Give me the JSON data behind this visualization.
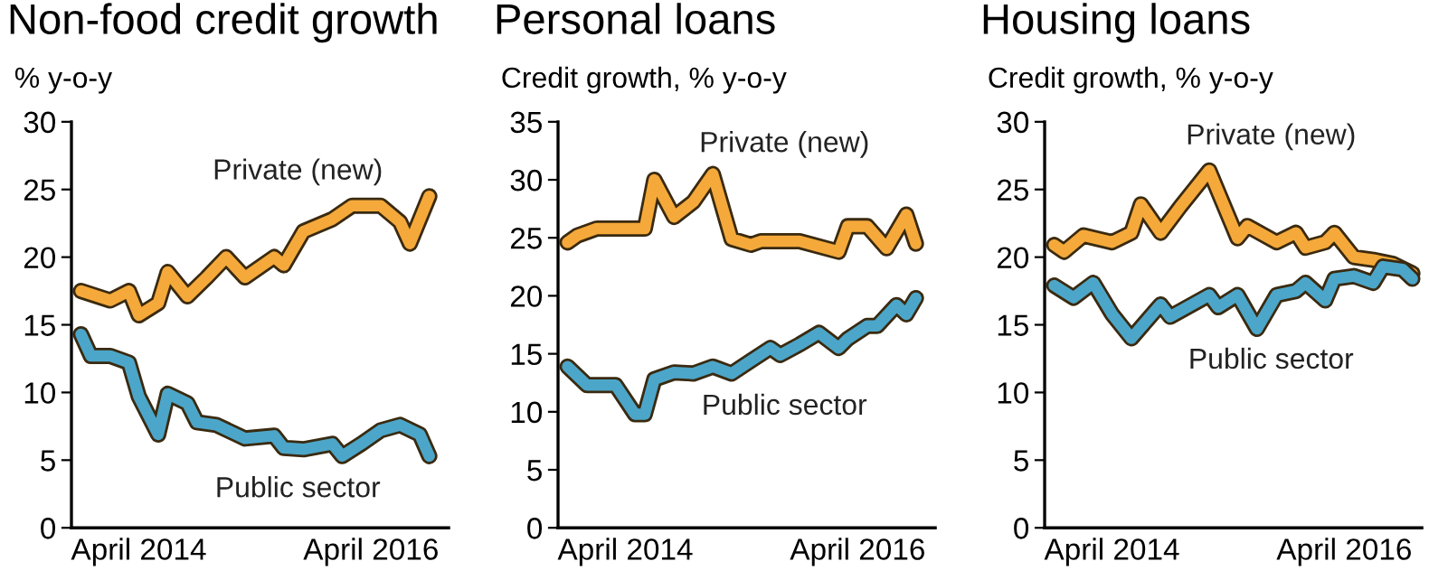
{
  "chart_data": [
    {
      "type": "line",
      "title": "Non-food credit growth",
      "subtitle": "% y-o-y",
      "xlim": [
        "2013-09",
        "2016-12"
      ],
      "ylim": [
        0,
        30
      ],
      "yticks": [
        0,
        5,
        10,
        15,
        20,
        25,
        30
      ],
      "xticks": [
        {
          "value": "2014-04",
          "label": "April 2014"
        },
        {
          "value": "2016-04",
          "label": "April 2016"
        }
      ],
      "grid": false,
      "legend": false,
      "marker": "none",
      "line_style": "solid",
      "series": [
        {
          "name": "Private (new)",
          "color": "#f5a93a",
          "x": [
            "2013-10",
            "2014-01",
            "2014-03",
            "2014-04",
            "2014-06",
            "2014-07",
            "2014-09",
            "2014-11",
            "2015-01",
            "2015-03",
            "2015-06",
            "2015-07",
            "2015-09",
            "2015-12",
            "2016-02",
            "2016-05",
            "2016-07",
            "2016-08",
            "2016-10"
          ],
          "values": [
            17.5,
            16.8,
            17.5,
            15.7,
            16.6,
            18.9,
            17.1,
            18.5,
            20.0,
            18.5,
            20.0,
            19.4,
            21.9,
            22.8,
            23.8,
            23.8,
            22.6,
            21.0,
            24.5
          ]
        },
        {
          "name": "Public sector",
          "color": "#4ca6c9",
          "x": [
            "2013-10",
            "2013-11",
            "2014-01",
            "2014-03",
            "2014-04",
            "2014-06",
            "2014-07",
            "2014-09",
            "2014-10",
            "2014-12",
            "2015-03",
            "2015-06",
            "2015-07",
            "2015-09",
            "2015-12",
            "2016-01",
            "2016-03",
            "2016-05",
            "2016-07",
            "2016-09",
            "2016-10"
          ],
          "values": [
            14.3,
            12.7,
            12.7,
            12.2,
            9.7,
            6.9,
            9.9,
            9.2,
            7.8,
            7.6,
            6.6,
            6.8,
            5.9,
            5.8,
            6.2,
            5.3,
            6.2,
            7.2,
            7.6,
            6.9,
            5.3
          ]
        }
      ]
    },
    {
      "type": "line",
      "title": "Personal loans",
      "subtitle": "Credit growth, % y-o-y",
      "xlim": [
        "2013-09",
        "2016-12"
      ],
      "ylim": [
        0,
        35
      ],
      "yticks": [
        0,
        5,
        10,
        15,
        20,
        25,
        30,
        35
      ],
      "xticks": [
        {
          "value": "2014-04",
          "label": "April 2014"
        },
        {
          "value": "2016-04",
          "label": "April 2016"
        }
      ],
      "grid": false,
      "legend": false,
      "marker": "none",
      "line_style": "solid",
      "series": [
        {
          "name": "Private (new)",
          "color": "#f5a93a",
          "x": [
            "2013-10",
            "2013-11",
            "2014-01",
            "2014-06",
            "2014-07",
            "2014-09",
            "2014-11",
            "2015-01",
            "2015-03",
            "2015-05",
            "2015-06",
            "2015-10",
            "2016-02",
            "2016-03",
            "2016-05",
            "2016-07",
            "2016-09",
            "2016-10"
          ],
          "values": [
            24.6,
            25.2,
            25.8,
            25.8,
            30.0,
            26.8,
            28.1,
            30.5,
            24.9,
            24.4,
            24.7,
            24.7,
            23.8,
            26.0,
            26.0,
            24.1,
            27.0,
            24.5
          ]
        },
        {
          "name": "Public sector",
          "color": "#4ca6c9",
          "x": [
            "2013-10",
            "2013-12",
            "2014-03",
            "2014-05",
            "2014-06",
            "2014-07",
            "2014-09",
            "2014-11",
            "2015-01",
            "2015-03",
            "2015-05",
            "2015-07",
            "2015-08",
            "2015-10",
            "2015-12",
            "2016-02",
            "2016-03",
            "2016-05",
            "2016-06",
            "2016-08",
            "2016-09",
            "2016-10"
          ],
          "values": [
            13.9,
            12.3,
            12.3,
            9.8,
            9.8,
            12.8,
            13.4,
            13.3,
            13.9,
            13.3,
            14.4,
            15.5,
            14.9,
            15.8,
            16.8,
            15.5,
            16.3,
            17.4,
            17.4,
            19.2,
            18.4,
            19.8
          ]
        }
      ]
    },
    {
      "type": "line",
      "title": "Housing loans",
      "subtitle": "Credit growth, % y-o-y",
      "xlim": [
        "2013-09",
        "2016-12"
      ],
      "ylim": [
        0,
        30
      ],
      "yticks": [
        0,
        5,
        10,
        15,
        20,
        25,
        30
      ],
      "xticks": [
        {
          "value": "2014-04",
          "label": "April 2014"
        },
        {
          "value": "2016-04",
          "label": "April 2016"
        }
      ],
      "grid": false,
      "legend": false,
      "marker": "none",
      "line_style": "solid",
      "series": [
        {
          "name": "Private (new)",
          "color": "#f5a93a",
          "x": [
            "2013-10",
            "2013-11",
            "2014-01",
            "2014-04",
            "2014-06",
            "2014-07",
            "2014-09",
            "2014-11",
            "2015-02",
            "2015-05",
            "2015-06",
            "2015-09",
            "2015-11",
            "2015-12",
            "2016-02",
            "2016-03",
            "2016-05",
            "2016-07",
            "2016-09",
            "2016-11"
          ],
          "values": [
            20.9,
            20.4,
            21.6,
            21.1,
            21.8,
            23.9,
            21.8,
            23.7,
            26.4,
            21.4,
            22.3,
            21.1,
            21.8,
            20.7,
            21.1,
            21.8,
            20.0,
            19.8,
            19.5,
            18.8
          ]
        },
        {
          "name": "Public sector",
          "color": "#4ca6c9",
          "x": [
            "2013-10",
            "2013-12",
            "2014-02",
            "2014-04",
            "2014-06",
            "2014-09",
            "2014-10",
            "2015-02",
            "2015-03",
            "2015-05",
            "2015-07",
            "2015-09",
            "2015-11",
            "2015-12",
            "2016-02",
            "2016-03",
            "2016-05",
            "2016-07",
            "2016-08",
            "2016-10",
            "2016-11"
          ],
          "values": [
            17.9,
            17.0,
            18.1,
            15.8,
            14.0,
            16.5,
            15.6,
            17.2,
            16.3,
            17.2,
            14.7,
            17.2,
            17.5,
            18.1,
            16.8,
            18.4,
            18.6,
            18.1,
            19.3,
            19.1,
            18.4
          ]
        }
      ]
    }
  ]
}
